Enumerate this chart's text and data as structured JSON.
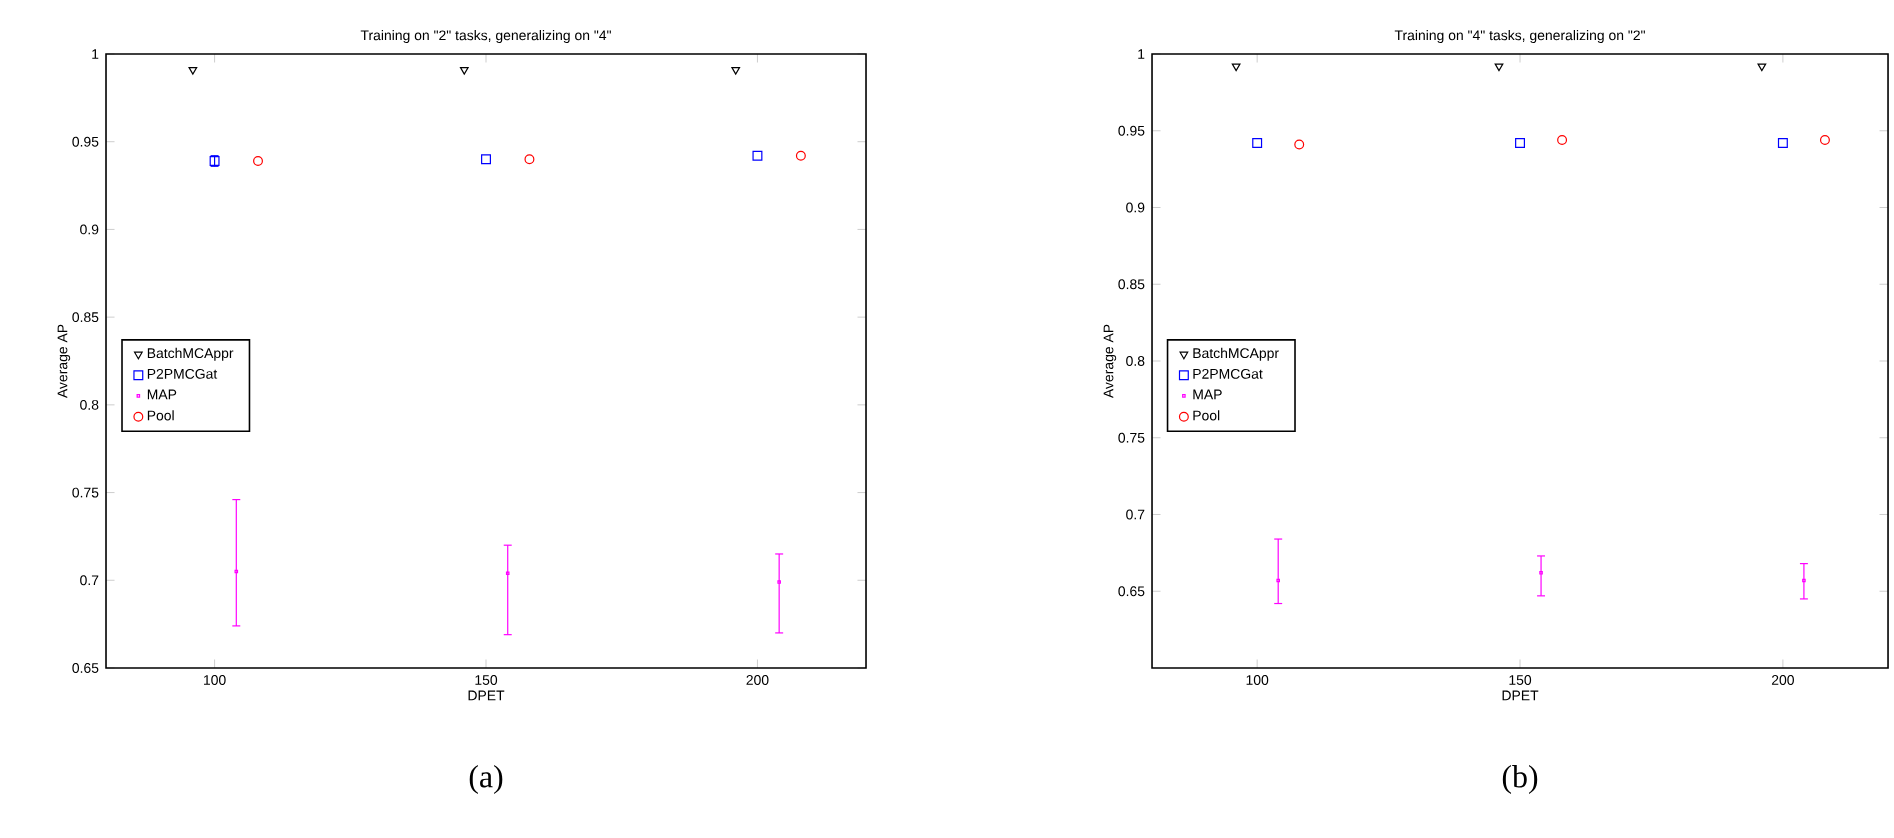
{
  "chart_data": [
    {
      "type": "scatter",
      "title": "Training on \"2\" tasks, generalizing on \"4\"",
      "xlabel": "DPET",
      "ylabel": "Average AP",
      "xlim": [
        80,
        220
      ],
      "xticks": [
        100,
        150,
        200
      ],
      "ylim": [
        0.65,
        1
      ],
      "yticks": [
        0.65,
        0.7,
        0.75,
        0.8,
        0.85,
        0.9,
        0.95,
        1
      ],
      "legend": "left",
      "grid": false,
      "annotations": [
        "(a)"
      ],
      "series": [
        {
          "name": "BatchMCAppr",
          "color": "#000000",
          "marker": "triangle",
          "x": [
            96,
            146,
            196
          ],
          "values": [
            0.991,
            0.991,
            0.991
          ]
        },
        {
          "name": "P2PMCGat",
          "color": "#0000ff",
          "marker": "square",
          "x": [
            100,
            150,
            200
          ],
          "values": [
            0.939,
            0.94,
            0.942
          ],
          "errors": [
            0.003,
            null,
            null
          ]
        },
        {
          "name": "MAP",
          "color": "#ff00ff",
          "marker": "square",
          "x": [
            104,
            154,
            204
          ],
          "values": [
            0.705,
            0.704,
            0.699
          ],
          "errors": [
            [
              0.674,
              0.746
            ],
            [
              0.669,
              0.72
            ],
            [
              0.67,
              0.715
            ]
          ]
        },
        {
          "name": "Pool",
          "color": "#ff0000",
          "marker": "circle",
          "x": [
            108,
            158,
            208
          ],
          "values": [
            0.939,
            0.94,
            0.942
          ]
        }
      ]
    },
    {
      "type": "scatter",
      "title": "Training on \"4\" tasks, generalizing on \"2\"",
      "xlabel": "DPET",
      "ylabel": "Average AP",
      "xlim": [
        80,
        220
      ],
      "xticks": [
        100,
        150,
        200
      ],
      "ylim": [
        0.6,
        1
      ],
      "yticks": [
        0.65,
        0.7,
        0.75,
        0.8,
        0.85,
        0.9,
        0.95,
        1
      ],
      "legend": "left",
      "grid": false,
      "annotations": [
        "(b)"
      ],
      "series": [
        {
          "name": "BatchMCAppr",
          "color": "#000000",
          "marker": "triangle",
          "x": [
            96,
            146,
            196
          ],
          "values": [
            0.992,
            0.992,
            0.992
          ]
        },
        {
          "name": "P2PMCGat",
          "color": "#0000ff",
          "marker": "square",
          "x": [
            100,
            150,
            200
          ],
          "values": [
            0.942,
            0.942,
            0.942
          ]
        },
        {
          "name": "MAP",
          "color": "#ff00ff",
          "marker": "square",
          "x": [
            104,
            154,
            204
          ],
          "values": [
            0.657,
            0.662,
            0.657
          ],
          "errors": [
            [
              0.642,
              0.684
            ],
            [
              0.647,
              0.673
            ],
            [
              0.645,
              0.668
            ]
          ]
        },
        {
          "name": "Pool",
          "color": "#ff0000",
          "marker": "circle",
          "x": [
            108,
            158,
            208
          ],
          "values": [
            0.941,
            0.944,
            0.944
          ]
        }
      ]
    }
  ]
}
